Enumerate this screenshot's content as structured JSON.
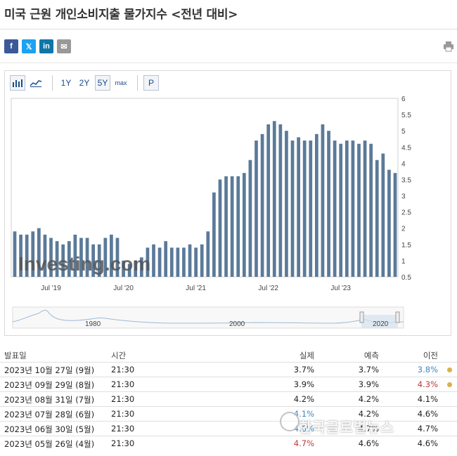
{
  "title": "미국 근원 개인소비지출 물가지수 <전년 대비>",
  "share": {
    "facebook": "f",
    "twitter": "𝕏",
    "linkedin": "in",
    "email": "✉"
  },
  "toolbar": {
    "range_1y": "1Y",
    "range_2y": "2Y",
    "range_5y": "5Y",
    "range_max": "max",
    "p_button": "P"
  },
  "watermark_chart": "Investing.com",
  "chart_data": {
    "type": "bar",
    "y_ticks": [
      "6",
      "5.5",
      "5",
      "4.5",
      "4",
      "3.5",
      "3",
      "2.5",
      "2",
      "1.5",
      "1",
      "0.5"
    ],
    "ylim": [
      0.5,
      6
    ],
    "x_ticks": [
      "Jul '19",
      "Jul '20",
      "Jul '21",
      "Jul '22",
      "Jul '23"
    ],
    "values": [
      1.9,
      1.8,
      1.8,
      1.9,
      2.0,
      1.8,
      1.7,
      1.6,
      1.5,
      1.6,
      1.8,
      1.7,
      1.7,
      1.5,
      1.5,
      1.7,
      1.8,
      1.7,
      1.0,
      0.9,
      1.0,
      1.1,
      1.4,
      1.5,
      1.4,
      1.6,
      1.4,
      1.4,
      1.4,
      1.5,
      1.4,
      1.5,
      1.9,
      3.1,
      3.5,
      3.6,
      3.6,
      3.6,
      3.7,
      4.1,
      4.7,
      4.9,
      5.2,
      5.3,
      5.2,
      5.0,
      4.7,
      4.8,
      4.7,
      4.7,
      4.9,
      5.2,
      5.0,
      4.7,
      4.6,
      4.7,
      4.7,
      4.6,
      4.7,
      4.6,
      4.1,
      4.3,
      3.8,
      3.7
    ],
    "nav_labels": [
      "1980",
      "2000",
      "2020"
    ]
  },
  "table": {
    "headers": {
      "date": "발표일",
      "time": "시간",
      "actual": "실제",
      "forecast": "예측",
      "previous": "이전"
    },
    "rows": [
      {
        "date": "2023년 10월 27일 (9월)",
        "time": "21:30",
        "actual": "3.7%",
        "forecast": "3.7%",
        "previous": "3.8%"
      },
      {
        "date": "2023년 09월 29일 (8월)",
        "time": "21:30",
        "actual": "3.9%",
        "forecast": "3.9%",
        "previous": "4.3%"
      },
      {
        "date": "2023년 08월 31일 (7월)",
        "time": "21:30",
        "actual": "4.2%",
        "forecast": "4.2%",
        "previous": "4.1%"
      },
      {
        "date": "2023년 07월 28일 (6월)",
        "time": "21:30",
        "actual": "4.1%",
        "forecast": "4.2%",
        "previous": "4.6%"
      },
      {
        "date": "2023년 06월 30일 (5월)",
        "time": "21:30",
        "actual": "4.6%",
        "forecast": "4.7%",
        "previous": "4.7%"
      },
      {
        "date": "2023년 05월 26일 (4월)",
        "time": "21:30",
        "actual": "4.7%",
        "forecast": "4.6%",
        "previous": "4.6%"
      }
    ]
  },
  "colors": {
    "bar": "#5b7a99",
    "red": "#c23a3a",
    "blue": "#3a8ac2",
    "dot": "#d8b24a"
  },
  "watermark_text": "한국글로벌뉴스"
}
